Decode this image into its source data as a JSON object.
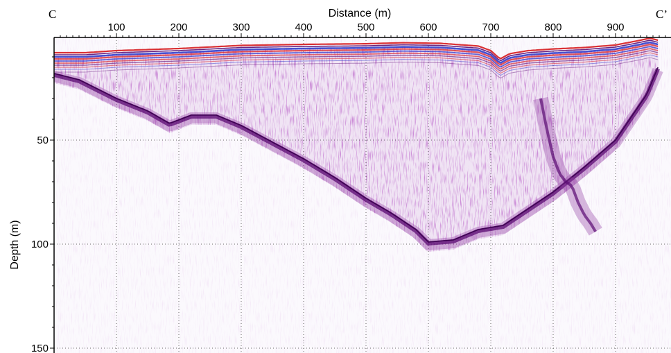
{
  "chart_data": {
    "type": "radargram",
    "title": "",
    "xlabel": "Distance (m)",
    "ylabel": "Depth (m)",
    "xlim": [
      0,
      968
    ],
    "ylim": [
      0,
      150
    ],
    "x_axis_position": "top",
    "y_inverted": true,
    "grid": true,
    "x_ticks": [
      100,
      200,
      300,
      400,
      500,
      600,
      700,
      800,
      900
    ],
    "y_ticks": [
      50,
      100,
      150
    ],
    "profile_start_label": "C",
    "profile_end_label": "C’",
    "colors": {
      "positive": "#d8262a",
      "negative": "#2430c8",
      "reflector": "#5a0a72",
      "scatter": "#8e3aa0"
    },
    "surface_depth": {
      "x": [
        0,
        50,
        100,
        200,
        300,
        400,
        500,
        560,
        620,
        680,
        700,
        715,
        730,
        760,
        800,
        850,
        900,
        940,
        955,
        968
      ],
      "y": [
        10,
        10,
        9,
        8,
        6.5,
        6,
        5.7,
        5.2,
        5.5,
        6.8,
        9,
        13,
        10.5,
        9,
        8.2,
        7.5,
        6.3,
        4,
        3,
        4
      ]
    },
    "bedrock_reflector_depth": {
      "x": [
        0,
        40,
        100,
        150,
        185,
        220,
        260,
        300,
        350,
        400,
        450,
        500,
        540,
        580,
        600,
        640,
        680,
        720,
        760,
        800,
        850,
        900,
        950,
        968
      ],
      "y": [
        18,
        21,
        30,
        36,
        42,
        38,
        38,
        43,
        51,
        59,
        68,
        78,
        85,
        93,
        99,
        98,
        93,
        91,
        83,
        75,
        63,
        50,
        28,
        15
      ]
    },
    "secondary_reflector_depth": {
      "x": [
        780,
        790,
        800,
        810,
        820,
        830,
        840,
        850,
        860,
        870
      ],
      "y": [
        30,
        45,
        58,
        66,
        70,
        72,
        80,
        86,
        90,
        95
      ]
    }
  }
}
